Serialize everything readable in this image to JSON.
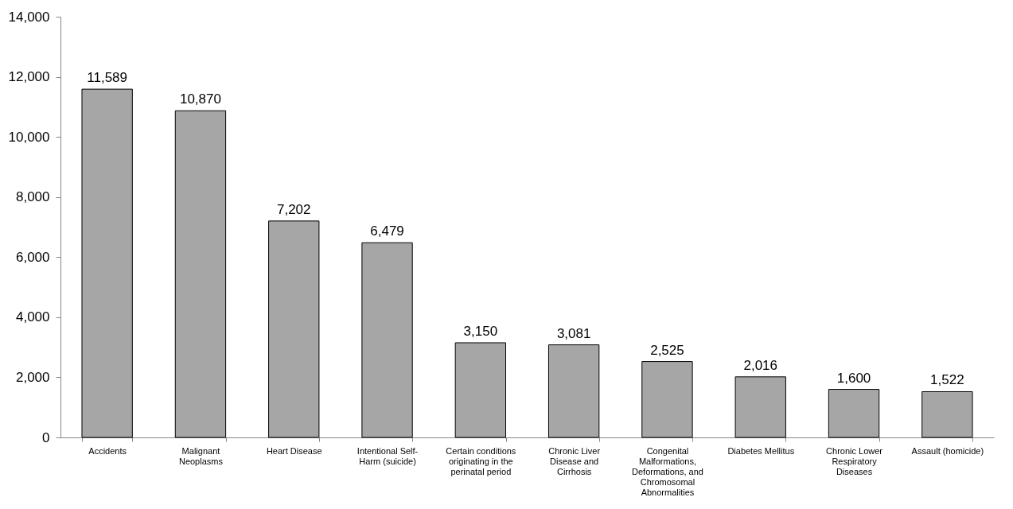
{
  "chart_data": {
    "type": "bar",
    "categories": [
      "Accidents",
      "Malignant Neoplasms",
      "Heart Disease",
      "Intentional Self-Harm (suicide)",
      "Certain conditions originating in the perinatal period",
      "Chronic Liver Disease and Cirrhosis",
      "Congenital Malformations, Deformations, and Chromosomal Abnormalities",
      "Diabetes Mellitus",
      "Chronic Lower Respiratory Diseases",
      "Assault (homicide)"
    ],
    "values": [
      11589,
      10870,
      7202,
      6479,
      3150,
      3081,
      2525,
      2016,
      1600,
      1522
    ],
    "value_labels": [
      "11,589",
      "10,870",
      "7,202",
      "6,479",
      "3,150",
      "3,081",
      "2,525",
      "2,016",
      "1,600",
      "1,522"
    ],
    "color": "#a6a6a6",
    "ylim": [
      0,
      14000
    ],
    "yticks": [
      0,
      {
        "value": 2000,
        "label": "2,000"
      },
      {
        "value": 4000,
        "label": "4,000"
      },
      {
        "value": 6000,
        "label": "6,000"
      },
      {
        "value": 8000,
        "label": "8,000"
      },
      {
        "value": 10000,
        "label": "10,000"
      },
      {
        "value": 12000,
        "label": "12,000"
      },
      {
        "value": 14000,
        "label": "14,000"
      }
    ],
    "grid": false
  }
}
